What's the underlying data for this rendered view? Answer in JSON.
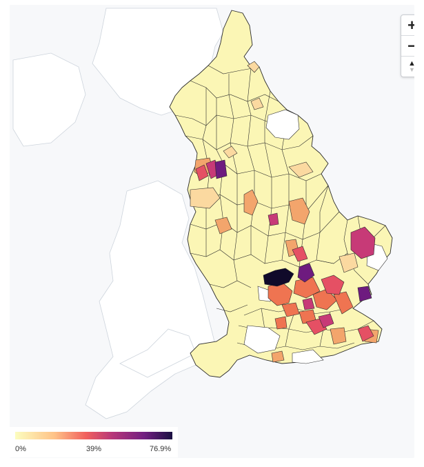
{
  "map": {
    "zoom_controls": {
      "zoom_in": "+",
      "zoom_out": "−",
      "reset_north": "▲"
    },
    "legend": {
      "min_label": "0%",
      "mid_label": "39%",
      "max_label": "76.9%",
      "colors": [
        "#fcfdbf",
        "#fec287",
        "#f1605d",
        "#b63679",
        "#721f81",
        "#1a1042"
      ]
    },
    "fill_colors": {
      "low": "#fbf6b5",
      "light_orange": "#fbd9a0",
      "orange": "#f3a56c",
      "coral": "#ef7451",
      "red": "#e55064",
      "magenta": "#c73a77",
      "purple": "#6e1b7f",
      "dark": "#100a2a",
      "no_data": "#ffffff"
    }
  }
}
